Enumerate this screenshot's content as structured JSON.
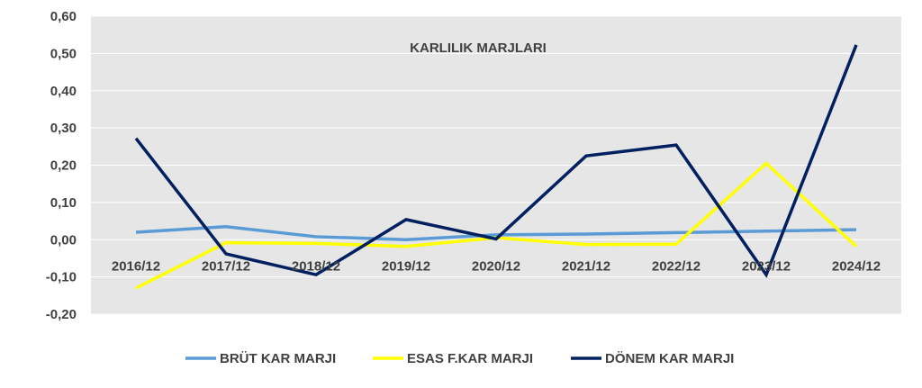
{
  "chart_data": {
    "type": "line",
    "title": "KARLILIK MARJLARI",
    "xlabel": "",
    "ylabel": "",
    "categories": [
      "2016/12",
      "2017/12",
      "2018/12",
      "2019/12",
      "2020/12",
      "2021/12",
      "2022/12",
      "2023/12",
      "2024/12"
    ],
    "ylim": [
      -0.2,
      0.6
    ],
    "yticks": [
      -0.2,
      -0.1,
      0.0,
      0.1,
      0.2,
      0.3,
      0.4,
      0.5,
      0.6
    ],
    "ytick_labels": [
      "-0,20",
      "-0,10",
      "0,00",
      "0,10",
      "0,20",
      "0,30",
      "0,40",
      "0,50",
      "0,60"
    ],
    "grid": true,
    "legend_position": "bottom",
    "plot_background": "#e6e6e6",
    "series": [
      {
        "name": "BRÜT KAR MARJI",
        "color": "#5b9bd5",
        "values": [
          0.02,
          0.035,
          0.008,
          0.0,
          0.013,
          0.015,
          0.019,
          0.023,
          0.027
        ]
      },
      {
        "name": "ESAS F.KAR MARJI",
        "color": "#ffff00",
        "values": [
          -0.13,
          -0.008,
          -0.01,
          -0.018,
          0.005,
          -0.013,
          -0.012,
          0.205,
          -0.018
        ]
      },
      {
        "name": "DÖNEM KAR MARJI",
        "color": "#002060",
        "values": [
          0.272,
          -0.038,
          -0.094,
          0.054,
          0.002,
          0.225,
          0.254,
          -0.094,
          0.523
        ]
      }
    ]
  }
}
